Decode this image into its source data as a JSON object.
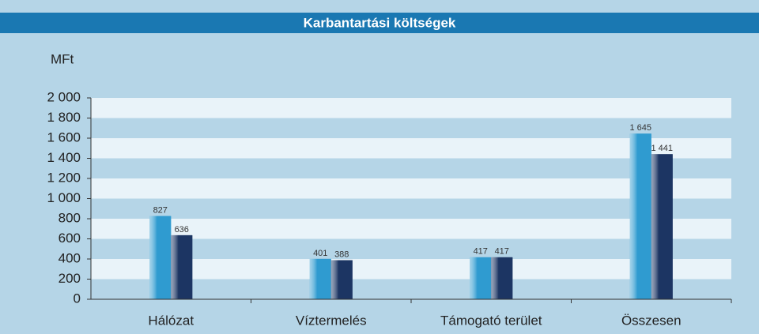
{
  "chart_data": {
    "type": "bar",
    "title": "Karbantartási költségek",
    "y_label": "MFt",
    "categories": [
      "Hálózat",
      "Víztermelés",
      "Támogató terület",
      "Összesen"
    ],
    "series": [
      {
        "color": "#2f9bd0",
        "values": [
          827,
          401,
          417,
          1645
        ],
        "value_labels": [
          "827",
          "401",
          "417",
          "1 645"
        ]
      },
      {
        "color": "#1c3563",
        "values": [
          636,
          388,
          417,
          1441
        ],
        "value_labels": [
          "636",
          "388",
          "417",
          "1 441"
        ]
      }
    ],
    "ylim": [
      0,
      2000
    ],
    "yticks": [
      0,
      200,
      400,
      600,
      800,
      {
        "value": 1000,
        "label": "1 000"
      },
      {
        "value": 1200,
        "label": "1 200"
      },
      {
        "value": 1400,
        "label": "1 400"
      },
      {
        "value": 1600,
        "label": "1 600"
      },
      {
        "value": 1800,
        "label": "1 800"
      },
      {
        "value": 2000,
        "label": "2 000"
      }
    ],
    "grid": true
  }
}
